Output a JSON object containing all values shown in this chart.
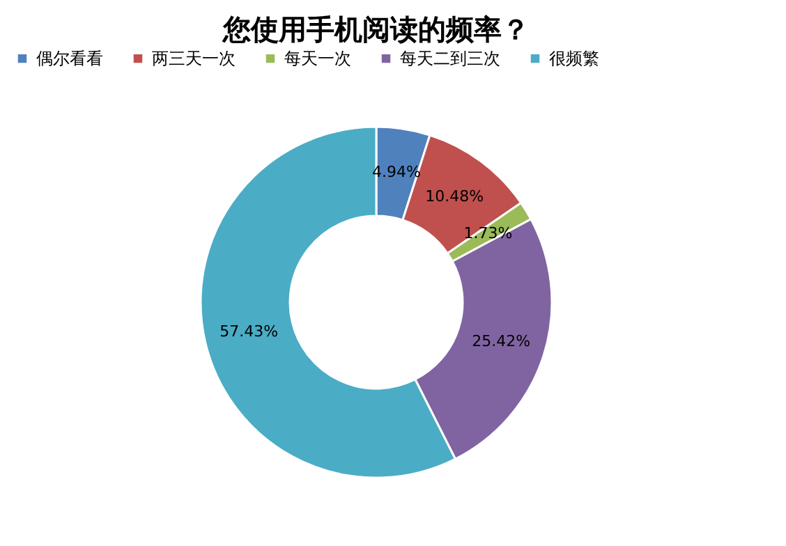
{
  "chart_data": {
    "type": "donut",
    "title": "您使用手机阅读的频率？",
    "categories": [
      "偶尔看看",
      "两三天一次",
      "每天一次",
      "每天二到三次",
      "很频繁"
    ],
    "values": [
      4.94,
      10.48,
      1.73,
      25.42,
      57.43
    ],
    "colors": [
      "#4f81bd",
      "#c0504d",
      "#9bbb59",
      "#8064a2",
      "#4bacc6"
    ],
    "value_labels": [
      "4.94%",
      "10.48%",
      "1.73%",
      "25.42%",
      "57.43%"
    ],
    "legend": "top"
  }
}
